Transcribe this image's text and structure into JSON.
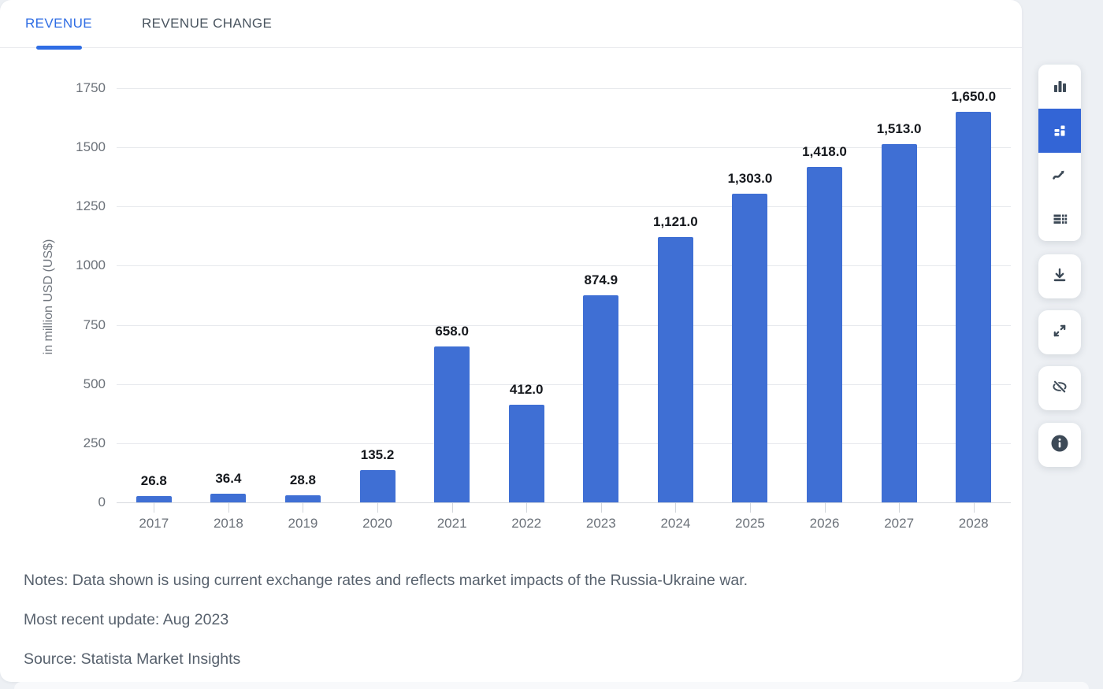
{
  "tabs": [
    {
      "label": "REVENUE",
      "active": true
    },
    {
      "label": "REVENUE CHANGE",
      "active": false
    }
  ],
  "chart_data": {
    "type": "bar",
    "categories": [
      "2017",
      "2018",
      "2019",
      "2020",
      "2021",
      "2022",
      "2023",
      "2024",
      "2025",
      "2026",
      "2027",
      "2028"
    ],
    "values": [
      26.8,
      36.4,
      28.8,
      135.2,
      658.0,
      412.0,
      874.9,
      1121.0,
      1303.0,
      1418.0,
      1513.0,
      1650.0
    ],
    "value_labels": [
      "26.8",
      "36.4",
      "28.8",
      "135.2",
      "658.0",
      "412.0",
      "874.9",
      "1,121.0",
      "1,303.0",
      "1,418.0",
      "1,513.0",
      "1,650.0"
    ],
    "title": "",
    "xlabel": "",
    "ylabel": "in million USD (US$)",
    "ylim": [
      0,
      1750
    ],
    "yticks": [
      0,
      250,
      500,
      750,
      1000,
      1250,
      1500,
      1750
    ],
    "grid": true,
    "legend": "none",
    "bar_color": "#3f6fd4"
  },
  "notes": {
    "line1": "Notes: Data shown is using current exchange rates and reflects market impacts of the Russia-Ukraine war.",
    "line2": "Most recent update: Aug 2023",
    "line3": "Source: Statista Market Insights"
  },
  "toolbar": {
    "chart_types": [
      {
        "icon": "bar-chart-icon",
        "selected": false
      },
      {
        "icon": "pictogram-icon",
        "selected": true
      },
      {
        "icon": "line-chart-icon",
        "selected": false
      },
      {
        "icon": "table-icon",
        "selected": false
      }
    ],
    "actions": [
      {
        "icon": "download-icon"
      },
      {
        "icon": "fullscreen-icon"
      },
      {
        "icon": "hide-labels-icon"
      },
      {
        "icon": "info-icon"
      }
    ]
  },
  "colors": {
    "accent_blue": "#2f6de4",
    "bar_blue": "#3f6fd4",
    "selected_tile_blue": "#3365d6",
    "icon_slate": "#3d4a57",
    "page_bg": "#edf0f4"
  }
}
